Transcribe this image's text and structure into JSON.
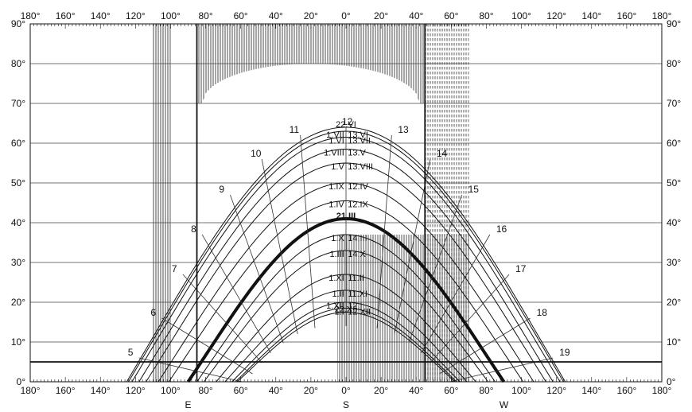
{
  "chart_data": {
    "type": "line",
    "x_ticks": [
      "180°",
      "160°",
      "140°",
      "120°",
      "100°",
      "80°",
      "60°",
      "40°",
      "20°",
      "0°",
      "20°",
      "40°",
      "60°",
      "80°",
      "100°",
      "120°",
      "140°",
      "160°",
      "180°"
    ],
    "y_ticks": [
      "0°",
      "10°",
      "20°",
      "30°",
      "40°",
      "50°",
      "60°",
      "70°",
      "80°",
      "90°"
    ],
    "xlim": [
      -180,
      180
    ],
    "ylim": [
      0,
      90
    ],
    "grid": true,
    "compass_labels": [
      {
        "text": "E",
        "az": -90
      },
      {
        "text": "S",
        "az": 0
      },
      {
        "text": "W",
        "az": 90
      }
    ],
    "sun_paths": [
      {
        "altitude_at_noon": 64.0,
        "half_span": 125,
        "labels": [
          "22.VI"
        ],
        "emphasis": false
      },
      {
        "altitude_at_noon": 63.0,
        "half_span": 124,
        "labels": [
          "1.VII",
          "13.VI"
        ],
        "emphasis": false
      },
      {
        "altitude_at_noon": 61.5,
        "half_span": 122,
        "labels": [
          "1.VI",
          "13.VII"
        ],
        "emphasis": false
      },
      {
        "altitude_at_noon": 58.5,
        "half_span": 118,
        "labels": [
          "1.VIII",
          "13.V"
        ],
        "emphasis": false
      },
      {
        "altitude_at_noon": 55.0,
        "half_span": 114,
        "labels": [
          "1.V",
          "13.VIII"
        ],
        "emphasis": false
      },
      {
        "altitude_at_noon": 50.0,
        "half_span": 107,
        "labels": [
          "1.IX",
          "12.IV"
        ],
        "emphasis": false
      },
      {
        "altitude_at_noon": 45.5,
        "half_span": 101,
        "labels": [
          "1.IV",
          "12.IX"
        ],
        "emphasis": false
      },
      {
        "altitude_at_noon": 41.0,
        "half_span": 90,
        "labels": [
          "21.III"
        ],
        "emphasis": true
      },
      {
        "altitude_at_noon": 37.0,
        "half_span": 85,
        "labels": [
          "1.X",
          "14.III"
        ],
        "emphasis": false
      },
      {
        "altitude_at_noon": 33.0,
        "half_span": 81,
        "labels": [
          "1.III",
          "14.X"
        ],
        "emphasis": false
      },
      {
        "altitude_at_noon": 27.0,
        "half_span": 74,
        "labels": [
          "1.XI",
          "11.II"
        ],
        "emphasis": false
      },
      {
        "altitude_at_noon": 23.0,
        "half_span": 69,
        "labels": [
          "1.II",
          "11.XI"
        ],
        "emphasis": false
      },
      {
        "altitude_at_noon": 20.0,
        "half_span": 65,
        "labels": [
          "1.XII",
          "12.I"
        ],
        "emphasis": false
      },
      {
        "altitude_at_noon": 18.5,
        "half_span": 63,
        "labels": [
          "1.I",
          "12.XII"
        ],
        "emphasis": false
      },
      {
        "altitude_at_noon": 17.5,
        "half_span": 62,
        "labels": [
          "22.XII"
        ],
        "emphasis": false
      }
    ],
    "hour_lines": [
      {
        "hour": "5",
        "az": -118,
        "alt": 6
      },
      {
        "hour": "6",
        "az": -105,
        "alt": 16
      },
      {
        "hour": "7",
        "az": -93,
        "alt": 27
      },
      {
        "hour": "8",
        "az": -82,
        "alt": 37
      },
      {
        "hour": "9",
        "az": -66,
        "alt": 47
      },
      {
        "hour": "10",
        "az": -48,
        "alt": 56
      },
      {
        "hour": "11",
        "az": -26,
        "alt": 62
      },
      {
        "hour": "12",
        "az": 0,
        "alt": 64
      },
      {
        "hour": "13",
        "az": 26,
        "alt": 62
      },
      {
        "hour": "14",
        "az": 48,
        "alt": 56
      },
      {
        "hour": "15",
        "az": 66,
        "alt": 47
      },
      {
        "hour": "16",
        "az": 82,
        "alt": 37
      },
      {
        "hour": "17",
        "az": 93,
        "alt": 27
      },
      {
        "hour": "18",
        "az": 105,
        "alt": 16
      },
      {
        "hour": "19",
        "az": 118,
        "alt": 6
      }
    ],
    "obstruction_vertical_lines_az": [
      -85,
      45
    ],
    "obstruction_horizon_alt": 5,
    "shaded_regions": [
      {
        "kind": "column",
        "az_from": -110,
        "az_to": -100,
        "alt_from": 0,
        "alt_to": 90
      },
      {
        "kind": "column",
        "az_from": -85,
        "az_to": 45,
        "alt_from": 70,
        "alt_to": 90
      },
      {
        "kind": "column",
        "az_from": 45,
        "az_to": 70,
        "alt_from": 0,
        "alt_to": 90
      },
      {
        "kind": "building",
        "az_from": -5,
        "az_to": 70,
        "alt_from": 0,
        "alt_to": 37
      }
    ]
  }
}
